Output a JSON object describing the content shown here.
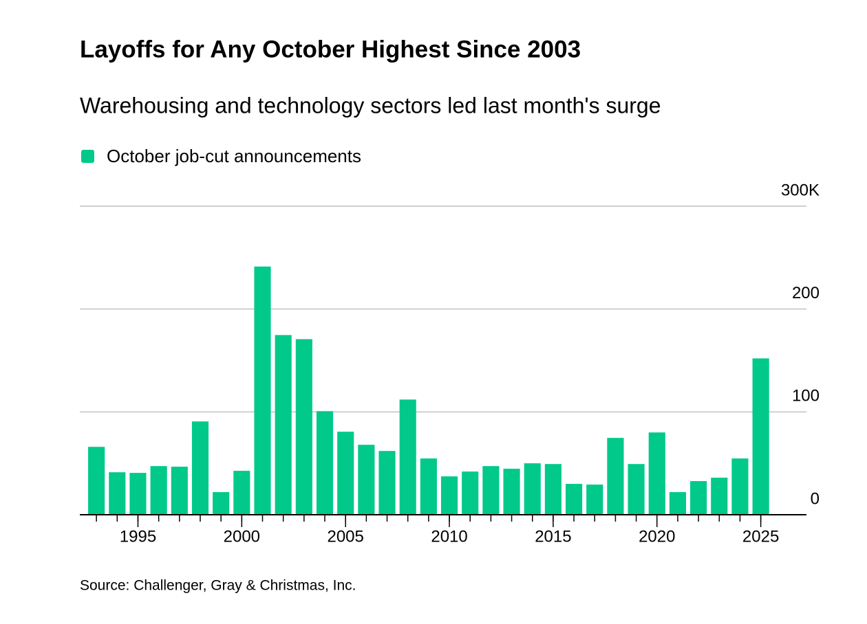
{
  "chart_data": {
    "type": "bar",
    "title": "Layoffs for Any October Highest Since 2003",
    "subtitle": "Warehousing and technology sectors led last month's surge",
    "source": "Source: Challenger, Gray & Christmas, Inc.",
    "x": [
      1993,
      1994,
      1995,
      1996,
      1997,
      1998,
      1999,
      2000,
      2001,
      2002,
      2003,
      2004,
      2005,
      2006,
      2007,
      2008,
      2009,
      2010,
      2011,
      2012,
      2013,
      2014,
      2015,
      2016,
      2017,
      2018,
      2019,
      2020,
      2021,
      2022,
      2023,
      2024,
      2025
    ],
    "series": [
      {
        "name": "October job-cut announcements",
        "color": "#00c98a",
        "values": [
          66,
          41.3,
          40.7,
          47.3,
          46.7,
          90.7,
          22,
          42.7,
          241.3,
          174.7,
          170.7,
          100.7,
          80.7,
          68,
          62,
          112,
          54.7,
          37.3,
          42,
          47.3,
          44.7,
          50,
          49.3,
          30,
          29.3,
          74.7,
          49.3,
          80,
          22,
          32.7,
          36,
          54.7,
          152
        ]
      }
    ],
    "xlim": [
      1992.2,
      2027.2
    ],
    "xticks": [
      1995,
      2000,
      2005,
      2010,
      2015,
      2020,
      2025
    ],
    "ylim": [
      0,
      300
    ],
    "yticks": [
      0,
      100,
      200,
      {
        "value": 300,
        "label": "300K"
      }
    ],
    "grid": true
  }
}
